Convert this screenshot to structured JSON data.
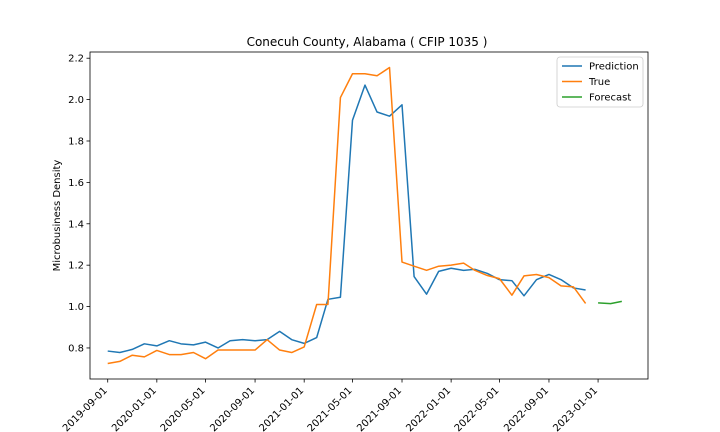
{
  "chart_data": {
    "type": "line",
    "title": "Conecuh County, Alabama ( CFIP 1035 )",
    "xlabel": "",
    "ylabel": "Microbusiness Density",
    "ylim": [
      0.65,
      2.23
    ],
    "xlim": [
      "2019-07-19",
      "2023-05-05"
    ],
    "yticks": [
      0.8,
      1.0,
      1.2,
      1.4,
      1.6,
      1.8,
      2.0,
      2.2
    ],
    "ytick_labels": [
      "0.8",
      "1.0",
      "1.2",
      "1.4",
      "1.6",
      "1.8",
      "2.0",
      "2.2"
    ],
    "xticks": [
      "2019-09-01",
      "2020-01-01",
      "2020-05-01",
      "2020-09-01",
      "2021-01-01",
      "2021-05-01",
      "2021-09-01",
      "2022-01-01",
      "2022-05-01",
      "2022-09-01",
      "2023-01-01"
    ],
    "xtick_labels": [
      "2019-09-01",
      "2020-01-01",
      "2020-05-01",
      "2020-09-01",
      "2021-01-01",
      "2021-05-01",
      "2021-09-01",
      "2022-01-01",
      "2022-05-01",
      "2022-09-01",
      "2023-01-01"
    ],
    "legend_position": "top-right",
    "grid": false,
    "series": [
      {
        "name": "Prediction",
        "color": "#1f77b4",
        "x": [
          "2019-09-01",
          "2019-10-01",
          "2019-11-01",
          "2019-12-01",
          "2020-01-01",
          "2020-02-01",
          "2020-03-01",
          "2020-04-01",
          "2020-05-01",
          "2020-06-01",
          "2020-07-01",
          "2020-08-01",
          "2020-09-01",
          "2020-10-01",
          "2020-11-01",
          "2020-12-01",
          "2021-01-01",
          "2021-02-01",
          "2021-03-01",
          "2021-04-01",
          "2021-05-01",
          "2021-06-01",
          "2021-07-01",
          "2021-08-01",
          "2021-09-01",
          "2021-10-01",
          "2021-11-01",
          "2021-12-01",
          "2022-01-01",
          "2022-02-01",
          "2022-03-01",
          "2022-04-01",
          "2022-05-01",
          "2022-06-01",
          "2022-07-01",
          "2022-08-01",
          "2022-09-01",
          "2022-10-01",
          "2022-11-01",
          "2022-12-01"
        ],
        "y": [
          0.785,
          0.778,
          0.793,
          0.82,
          0.81,
          0.835,
          0.82,
          0.815,
          0.828,
          0.8,
          0.835,
          0.84,
          0.835,
          0.84,
          0.88,
          0.84,
          0.822,
          0.85,
          1.035,
          1.045,
          1.9,
          2.07,
          1.94,
          1.92,
          1.975,
          1.145,
          1.06,
          1.17,
          1.185,
          1.175,
          1.18,
          1.16,
          1.13,
          1.125,
          1.052,
          1.13,
          1.155,
          1.13,
          1.09,
          1.08
        ]
      },
      {
        "name": "True",
        "color": "#ff7f0e",
        "x": [
          "2019-09-01",
          "2019-10-01",
          "2019-11-01",
          "2019-12-01",
          "2020-01-01",
          "2020-02-01",
          "2020-03-01",
          "2020-04-01",
          "2020-05-01",
          "2020-06-01",
          "2020-07-01",
          "2020-08-01",
          "2020-09-01",
          "2020-10-01",
          "2020-11-01",
          "2020-12-01",
          "2021-01-01",
          "2021-02-01",
          "2021-03-01",
          "2021-04-01",
          "2021-05-01",
          "2021-06-01",
          "2021-07-01",
          "2021-08-01",
          "2021-09-01",
          "2021-10-01",
          "2021-11-01",
          "2021-12-01",
          "2022-01-01",
          "2022-02-01",
          "2022-03-01",
          "2022-04-01",
          "2022-05-01",
          "2022-06-01",
          "2022-07-01",
          "2022-08-01",
          "2022-09-01",
          "2022-10-01",
          "2022-11-01",
          "2022-12-01"
        ],
        "y": [
          0.725,
          0.735,
          0.765,
          0.757,
          0.788,
          0.768,
          0.768,
          0.778,
          0.748,
          0.79,
          0.79,
          0.79,
          0.79,
          0.84,
          0.79,
          0.778,
          0.805,
          1.01,
          1.01,
          2.01,
          2.125,
          2.125,
          2.115,
          2.155,
          1.215,
          1.195,
          1.175,
          1.195,
          1.2,
          1.21,
          1.175,
          1.15,
          1.135,
          1.055,
          1.148,
          1.155,
          1.14,
          1.1,
          1.095,
          1.015
        ]
      },
      {
        "name": "Forecast",
        "color": "#2ca02c",
        "x": [
          "2023-01-01",
          "2023-02-01",
          "2023-03-01"
        ],
        "y": [
          1.018,
          1.014,
          1.025
        ]
      }
    ]
  }
}
